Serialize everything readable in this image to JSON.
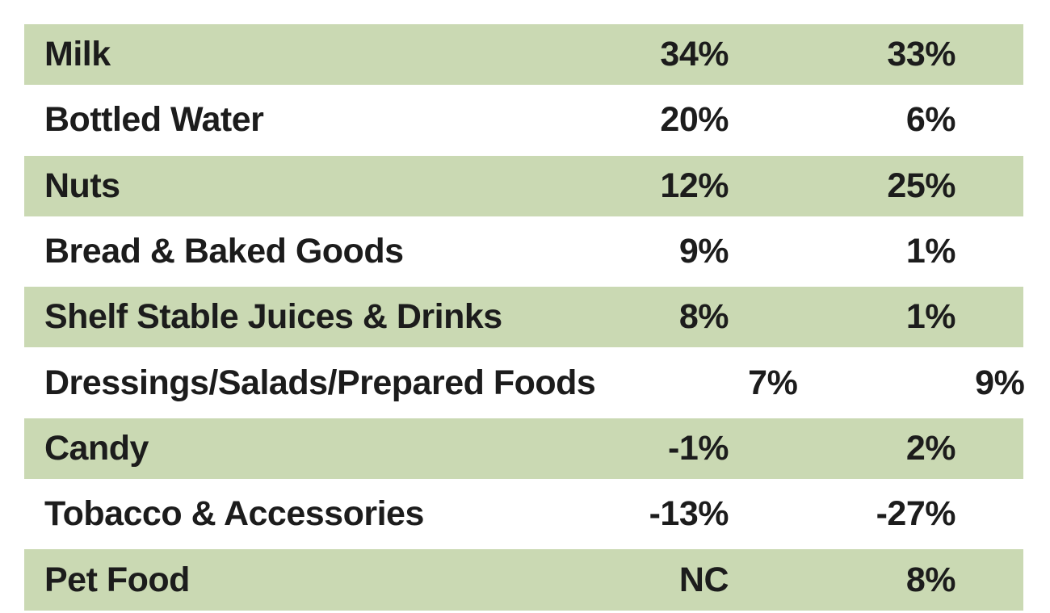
{
  "chart_data": {
    "type": "table",
    "categories": [
      "Milk",
      "Bottled Water",
      "Nuts",
      "Bread & Baked Goods",
      "Shelf Stable Juices & Drinks",
      "Dressings/Salads/Prepared Foods",
      "Candy",
      "Tobacco & Accessories",
      "Pet Food"
    ],
    "series": [
      {
        "name": "value-column-1",
        "values": [
          "34%",
          "20%",
          "12%",
          "9%",
          "8%",
          "7%",
          "-1%",
          "-13%",
          "NC"
        ]
      },
      {
        "name": "value-column-2",
        "values": [
          "33%",
          "6%",
          "25%",
          "1%",
          "1%",
          "9%",
          "2%",
          "-27%",
          "8%"
        ]
      }
    ],
    "layout": {
      "striped_rows": true,
      "highlighted_row_indices": [
        0,
        2,
        4,
        6,
        8
      ],
      "header_visible": false,
      "last_row_clipped": true
    }
  },
  "table": {
    "rows": [
      {
        "category": "Milk",
        "value1": "34%",
        "value2": "33%",
        "highlighted": true
      },
      {
        "category": "Bottled Water",
        "value1": "20%",
        "value2": "6%",
        "highlighted": false
      },
      {
        "category": "Nuts",
        "value1": "12%",
        "value2": "25%",
        "highlighted": true
      },
      {
        "category": "Bread & Baked Goods",
        "value1": "9%",
        "value2": "1%",
        "highlighted": false
      },
      {
        "category": "Shelf Stable Juices & Drinks",
        "value1": "8%",
        "value2": "1%",
        "highlighted": true
      },
      {
        "category": "Dressings/Salads/Prepared Foods",
        "value1": "7%",
        "value2": "9%",
        "highlighted": false
      },
      {
        "category": "Candy",
        "value1": "-1%",
        "value2": "2%",
        "highlighted": true
      },
      {
        "category": "Tobacco & Accessories",
        "value1": "-13%",
        "value2": "-27%",
        "highlighted": false
      },
      {
        "category": "Pet Food",
        "value1": "NC",
        "value2": "8%",
        "highlighted": true
      }
    ],
    "colors": {
      "row_highlight": "#cad9b3",
      "text": "#1c1c1c",
      "background": "#ffffff"
    }
  }
}
